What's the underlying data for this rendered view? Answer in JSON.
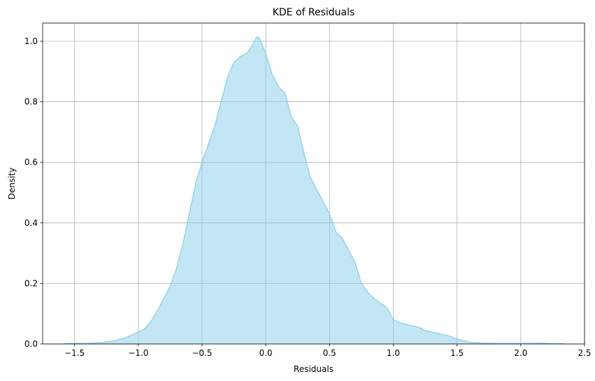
{
  "chart_data": {
    "type": "area",
    "title": "KDE of Residuals",
    "xlabel": "Residuals",
    "ylabel": "Density",
    "xlim": [
      -1.75,
      2.5
    ],
    "ylim": [
      0,
      1.06
    ],
    "x_ticks": [
      -1.5,
      -1.0,
      -0.5,
      0.0,
      0.5,
      1.0,
      1.5,
      2.0,
      2.5
    ],
    "x_tick_labels": [
      "−1.5",
      "−1.0",
      "−0.5",
      "0.0",
      "0.5",
      "1.0",
      "1.5",
      "2.0",
      "2.5"
    ],
    "y_ticks": [
      0.0,
      0.2,
      0.4,
      0.6,
      0.8,
      1.0
    ],
    "y_tick_labels": [
      "0.0",
      "0.2",
      "0.4",
      "0.6",
      "0.8",
      "1.0"
    ],
    "grid": true,
    "fill_color": "#87ceeb",
    "fill_opacity": 0.5,
    "line_color": "#87ceeb",
    "series": [
      {
        "x": [
          -1.58,
          -1.5,
          -1.4,
          -1.3,
          -1.2,
          -1.15,
          -1.1,
          -1.05,
          -1.0,
          -0.95,
          -0.9,
          -0.85,
          -0.8,
          -0.75,
          -0.7,
          -0.65,
          -0.6,
          -0.55,
          -0.5,
          -0.45,
          -0.4,
          -0.35,
          -0.3,
          -0.25,
          -0.2,
          -0.15,
          -0.1,
          -0.07,
          -0.05,
          -0.03,
          0.0,
          0.05,
          0.1,
          0.12,
          0.15,
          0.2,
          0.25,
          0.3,
          0.35,
          0.4,
          0.45,
          0.5,
          0.55,
          0.6,
          0.65,
          0.7,
          0.75,
          0.8,
          0.85,
          0.9,
          0.95,
          1.0,
          1.05,
          1.1,
          1.15,
          1.2,
          1.25,
          1.3,
          1.35,
          1.4,
          1.45,
          1.5,
          1.55,
          1.6,
          1.7,
          1.8,
          1.9,
          2.0,
          2.1,
          2.15,
          2.2,
          2.3,
          2.34
        ],
        "y": [
          0.001,
          0.002,
          0.002,
          0.004,
          0.01,
          0.015,
          0.02,
          0.03,
          0.04,
          0.05,
          0.075,
          0.11,
          0.15,
          0.19,
          0.25,
          0.33,
          0.43,
          0.53,
          0.6,
          0.66,
          0.72,
          0.8,
          0.88,
          0.93,
          0.95,
          0.96,
          0.99,
          1.015,
          1.01,
          0.99,
          0.96,
          0.89,
          0.85,
          0.84,
          0.83,
          0.75,
          0.72,
          0.63,
          0.55,
          0.51,
          0.47,
          0.43,
          0.37,
          0.35,
          0.31,
          0.27,
          0.2,
          0.17,
          0.15,
          0.135,
          0.12,
          0.08,
          0.07,
          0.065,
          0.06,
          0.055,
          0.045,
          0.04,
          0.035,
          0.03,
          0.025,
          0.015,
          0.012,
          0.005,
          0.003,
          0.002,
          0.002,
          0.002,
          0.002,
          0.003,
          0.002,
          0.001,
          0.001
        ]
      }
    ]
  }
}
